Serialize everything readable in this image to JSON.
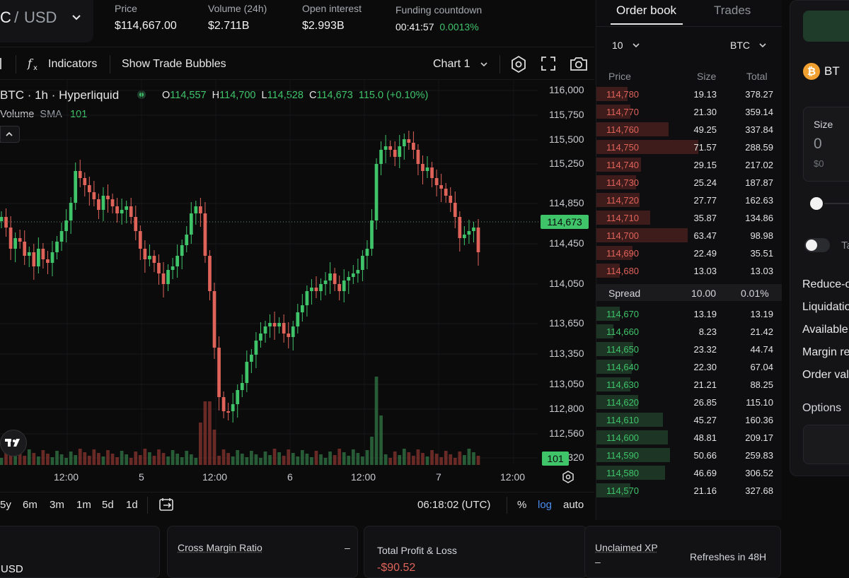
{
  "pair": {
    "base": "C",
    "sep": " / ",
    "quote": "USD"
  },
  "stats": [
    {
      "label": "Price",
      "value": "$114,667.00"
    },
    {
      "label": "Volume (24h)",
      "value": "$2.711B"
    },
    {
      "label": "Open interest",
      "value": "$2.993B"
    },
    {
      "label": "Funding countdown",
      "value": "00:41:57",
      "extra": "0.0013%"
    }
  ],
  "toolbar": {
    "indicators": "Indicators",
    "bubbles": "Show Trade Bubbles",
    "chart": "Chart 1"
  },
  "legend": {
    "symbol": "BTC · 1h · Hyperliquid",
    "o_label": "O",
    "o": "114,557",
    "h_label": "H",
    "h": "114,700",
    "l_label": "L",
    "l": "114,528",
    "c_label": "C",
    "c": "114,673",
    "change": "115.0 (+0.10%)",
    "vol_label": "Volume",
    "sma_label": "SMA",
    "sma": "101"
  },
  "chart_data": {
    "type": "candlestick",
    "y_ticks": [
      "116,000",
      "115,750",
      "115,500",
      "115,250",
      "114,850",
      "114,450",
      "114,050",
      "113,650",
      "113,350",
      "113,050",
      "112,800",
      "112,560",
      "112,320"
    ],
    "x_ticks": [
      "12:00",
      "5",
      "12:00",
      "6",
      "12:00",
      "7",
      "12:00"
    ],
    "last_price": "114,673",
    "last_volume": "101",
    "series": [
      {
        "name": "Volume SMA",
        "value": "101"
      }
    ]
  },
  "bottombar": {
    "ranges": [
      "5y",
      "6m",
      "3m",
      "1m",
      "5d",
      "1d"
    ],
    "time": "06:18:02 (UTC)",
    "percent": "%",
    "log": "log",
    "auto": "auto"
  },
  "orderbook": {
    "tabs": [
      "Order book",
      "Trades"
    ],
    "depth": "10",
    "unit": "BTC",
    "headers": [
      "Price",
      "Size",
      "Total"
    ],
    "asks": [
      {
        "price": "114,780",
        "size": "19.13",
        "total": "378.27"
      },
      {
        "price": "114,770",
        "size": "21.30",
        "total": "359.14"
      },
      {
        "price": "114,760",
        "size": "49.25",
        "total": "337.84"
      },
      {
        "price": "114,750",
        "size": "71.57",
        "total": "288.59"
      },
      {
        "price": "114,740",
        "size": "29.15",
        "total": "217.02"
      },
      {
        "price": "114,730",
        "size": "25.24",
        "total": "187.87"
      },
      {
        "price": "114,720",
        "size": "27.77",
        "total": "162.63"
      },
      {
        "price": "114,710",
        "size": "35.87",
        "total": "134.86"
      },
      {
        "price": "114,700",
        "size": "63.47",
        "total": "98.98"
      },
      {
        "price": "114,690",
        "size": "22.49",
        "total": "35.51"
      },
      {
        "price": "114,680",
        "size": "13.03",
        "total": "13.03"
      }
    ],
    "spread": {
      "label": "Spread",
      "value": "10.00",
      "pct": "0.01%"
    },
    "bids": [
      {
        "price": "114,670",
        "size": "13.19",
        "total": "13.19"
      },
      {
        "price": "114,660",
        "size": "8.23",
        "total": "21.42"
      },
      {
        "price": "114,650",
        "size": "23.32",
        "total": "44.74"
      },
      {
        "price": "114,640",
        "size": "22.30",
        "total": "67.04"
      },
      {
        "price": "114,630",
        "size": "21.21",
        "total": "88.25"
      },
      {
        "price": "114,620",
        "size": "26.85",
        "total": "115.10"
      },
      {
        "price": "114,610",
        "size": "45.27",
        "total": "160.36"
      },
      {
        "price": "114,600",
        "size": "48.81",
        "total": "209.17"
      },
      {
        "price": "114,590",
        "size": "50.66",
        "total": "259.83"
      },
      {
        "price": "114,580",
        "size": "46.69",
        "total": "306.52"
      },
      {
        "price": "114,570",
        "size": "21.16",
        "total": "327.68"
      }
    ]
  },
  "form": {
    "asset": "BT",
    "size_label": "Size",
    "size_value": "0",
    "size_usd": "$0",
    "toggle_label": "Ta",
    "rows": [
      "Reduce-o",
      "Liquidatio",
      "Available",
      "Margin re",
      "Order val"
    ],
    "options": "Options"
  },
  "cards": {
    "left_text": "USD",
    "cross_label": "Cross Margin Ratio",
    "cross_value": "–",
    "pnl_label": "Total Profit & Loss",
    "pnl_value": "-$90.52",
    "xp_label": "Unclaimed XP",
    "xp_value": "–",
    "refresh": "Refreshes in 48H"
  },
  "colors": {
    "green": "#3fc46a",
    "red": "#e0635a",
    "bg": "#0b0b0c"
  }
}
